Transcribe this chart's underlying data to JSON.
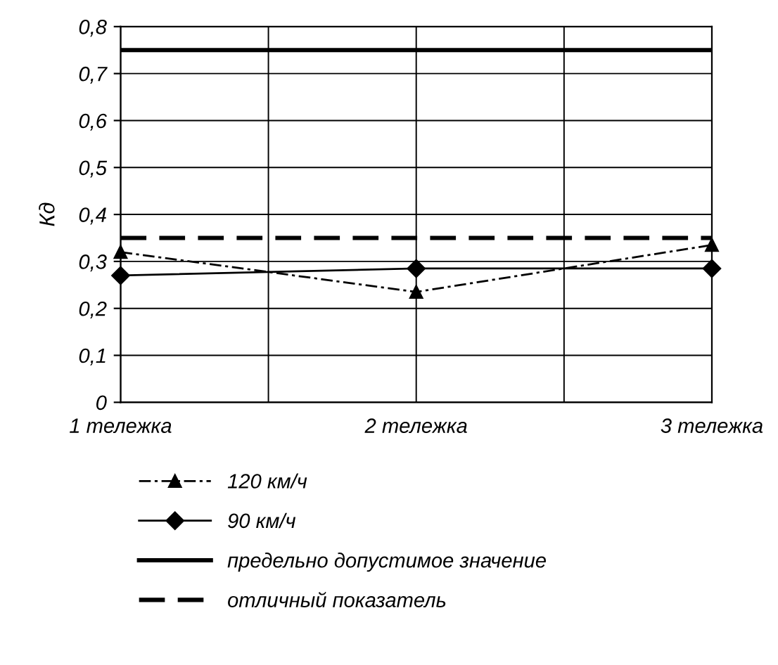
{
  "chart_data": {
    "type": "line",
    "ylabel": "Кд",
    "categories": [
      "1 тележка",
      "2 тележка",
      "3 тележка"
    ],
    "series": [
      {
        "name": "120 км/ч",
        "color": "#000000",
        "values": [
          0.32,
          0.235,
          0.335
        ],
        "marker": "triangle",
        "line_style": "dashdot"
      },
      {
        "name": "90 км/ч",
        "color": "#000000",
        "values": [
          0.27,
          0.285,
          0.285
        ],
        "marker": "diamond",
        "line_style": "solid"
      }
    ],
    "ref_lines": [
      {
        "axis": "y",
        "value": 0.75,
        "label": "предельно допустимое значение",
        "color": "#000000",
        "line_style": "solid"
      },
      {
        "axis": "y",
        "value": 0.35,
        "label": "отличный показатель",
        "color": "#000000",
        "line_style": "dashed"
      }
    ],
    "ylim": [
      0,
      0.8
    ],
    "yticks": [
      {
        "value": 0,
        "label": "0"
      },
      {
        "value": 0.1,
        "label": "0,1"
      },
      {
        "value": 0.2,
        "label": "0,2"
      },
      {
        "value": 0.3,
        "label": "0,3"
      },
      {
        "value": 0.4,
        "label": "0,4"
      },
      {
        "value": 0.5,
        "label": "0,5"
      },
      {
        "value": 0.6,
        "label": "0,6"
      },
      {
        "value": 0.7,
        "label": "0,7"
      },
      {
        "value": 0.8,
        "label": "0,8"
      }
    ],
    "grid": true,
    "legend": "bottom"
  }
}
